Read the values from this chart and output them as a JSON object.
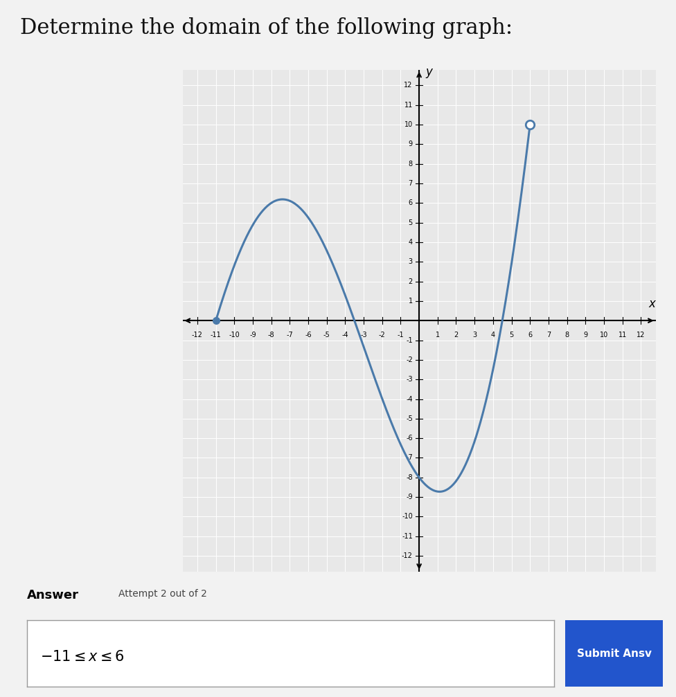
{
  "title": "Determine the domain of the following graph:",
  "title_fontsize": 22,
  "background_color": "#f2f2f2",
  "graph_bg_color": "#e8e8e8",
  "grid_color": "#ffffff",
  "curve_color": "#4a7aaa",
  "curve_linewidth": 2.2,
  "closed_dot_x": -11,
  "closed_dot_y": 0,
  "open_dot_x": 6,
  "open_dot_y": 10,
  "key_x": [
    -11,
    -8,
    -3.5,
    0.5,
    4.5,
    6
  ],
  "key_y": [
    0,
    6,
    0,
    -8.5,
    0,
    10
  ],
  "xlim": [
    -12.8,
    12.8
  ],
  "ylim": [
    -12.8,
    12.8
  ],
  "xtick_vals": [
    -12,
    -11,
    -10,
    -9,
    -8,
    -7,
    -6,
    -5,
    -4,
    -3,
    -2,
    -1,
    1,
    2,
    3,
    4,
    5,
    6,
    7,
    8,
    9,
    10,
    11,
    12
  ],
  "ytick_vals": [
    -12,
    -11,
    -10,
    -9,
    -8,
    -7,
    -6,
    -5,
    -4,
    -3,
    -2,
    -1,
    1,
    2,
    3,
    4,
    5,
    6,
    7,
    8,
    9,
    10,
    11,
    12
  ],
  "answer_label": "Answer",
  "attempt_text": "Attempt 2 out of 2",
  "answer_box_text": "-11 ≤ x ≤ 6",
  "submit_text": "Submit Ansv"
}
